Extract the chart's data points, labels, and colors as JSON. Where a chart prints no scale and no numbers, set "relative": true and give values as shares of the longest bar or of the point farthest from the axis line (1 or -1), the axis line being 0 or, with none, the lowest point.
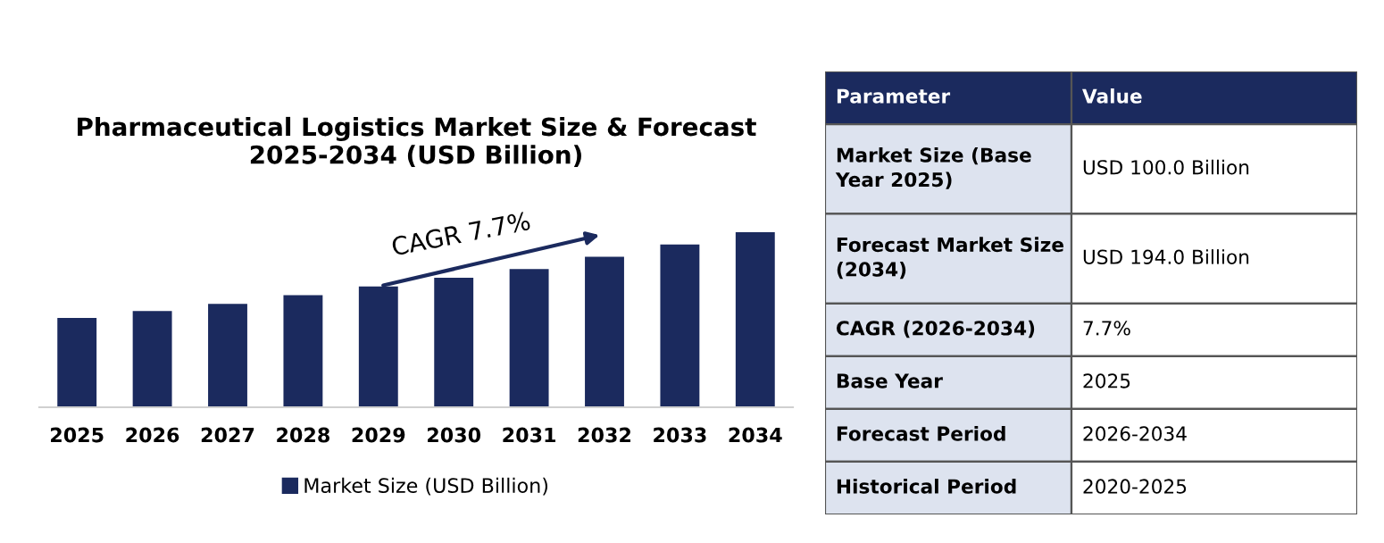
{
  "chart_data": [
    {
      "type": "bar",
      "title": "Pharmaceutical Logistics Market Size & Forecast\n2025-2034 (USD Billion)",
      "categories": [
        "2025",
        "2026",
        "2027",
        "2028",
        "2029",
        "2030",
        "2031",
        "2032",
        "2033",
        "2034"
      ],
      "series": [
        {
          "name": "Market Size (USD Billion)",
          "color": "#1b2a5e",
          "values": [
            0.51,
            0.55,
            0.59,
            0.64,
            0.69,
            0.74,
            0.79,
            0.86,
            0.93,
            1.0
          ]
        }
      ],
      "relative": true,
      "legend": "bottom",
      "grid": false,
      "annotations": [
        "CAGR 7.7%"
      ]
    },
    {
      "type": "other",
      "annotations": [
        "Parameter",
        "Value",
        "Market Size (Base\nYear 2025)",
        "USD 100.0 Billion",
        "Forecast Market Size\n(2034)",
        "USD 194.0 Billion",
        "CAGR (2026-2034)",
        "7.7%",
        "Base Year",
        "2025",
        "Forecast Period",
        "2026-2034",
        "Historical Period",
        "2020-2025"
      ]
    }
  ]
}
